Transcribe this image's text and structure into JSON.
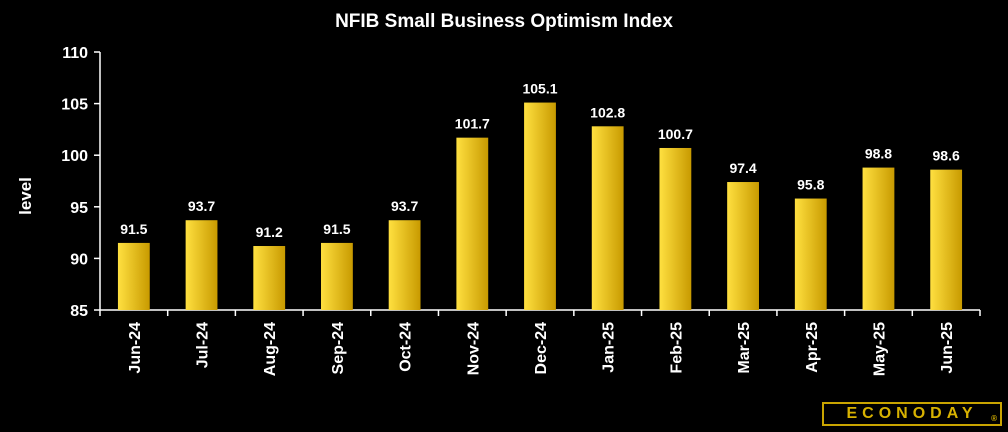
{
  "chart_data": {
    "type": "bar",
    "title": "NFIB Small Business Optimism Index",
    "ylabel": "level",
    "xlabel": "",
    "ylim": [
      85,
      110
    ],
    "yticks": [
      85,
      90,
      95,
      100,
      105,
      110
    ],
    "categories": [
      "Jun-24",
      "Jul-24",
      "Aug-24",
      "Sep-24",
      "Oct-24",
      "Nov-24",
      "Dec-24",
      "Jan-25",
      "Feb-25",
      "Mar-25",
      "Apr-25",
      "May-25",
      "Jun-25"
    ],
    "values": [
      91.5,
      93.7,
      91.2,
      91.5,
      93.7,
      101.7,
      105.1,
      102.8,
      100.7,
      97.4,
      95.8,
      98.8,
      98.6
    ],
    "value_labels": [
      "91.5",
      "93.7",
      "91.2",
      "91.5",
      "93.7",
      "101.7",
      "105.1",
      "102.8",
      "100.7",
      "97.4",
      "95.8",
      "98.8",
      "98.6"
    ],
    "bar_color_light": "#ffe040",
    "bar_color_dark": "#c89a00",
    "grid": false
  },
  "brand": {
    "logo_text": "ECONODAY",
    "registered_mark": "®",
    "logo_color": "#d8b200"
  }
}
